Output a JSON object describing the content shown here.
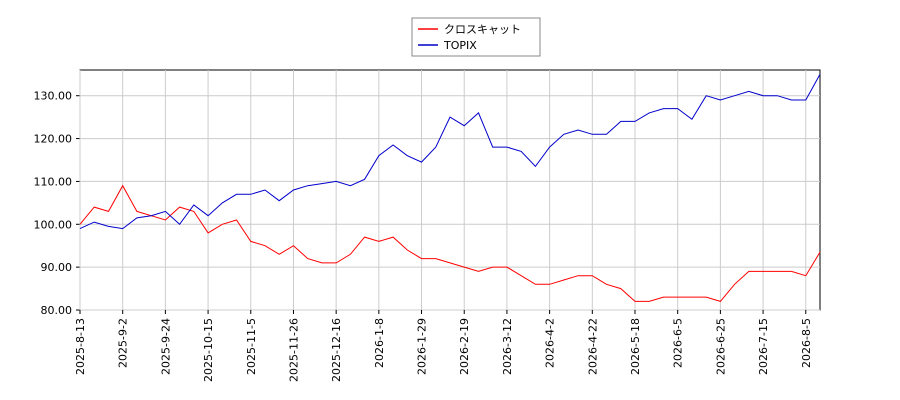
{
  "chart_data": {
    "type": "line",
    "categories": [
      "2025-8-13",
      null,
      null,
      "2025-9-2",
      null,
      null,
      "2025-9-24",
      null,
      null,
      "2025-10-15",
      null,
      null,
      "2025-11-5",
      null,
      null,
      "2025-11-26",
      null,
      null,
      "2025-12-16",
      null,
      null,
      "2026-1-8",
      null,
      null,
      "2026-1-29",
      null,
      null,
      "2026-2-19",
      null,
      null,
      "2026-3-12",
      null,
      null,
      "2026-4-2",
      null,
      null,
      "2026-4-22",
      null,
      null,
      "2026-5-18",
      null,
      null,
      "2026-6-5",
      null,
      null,
      "2026-6-25",
      null,
      null,
      "2026-7-15",
      null,
      null,
      "2026-8-5",
      null
    ],
    "series": [
      {
        "name": "クロスキャット",
        "color": "#ff0000",
        "values": [
          100,
          104,
          103,
          109,
          103,
          102,
          101,
          104,
          103,
          98,
          100,
          101,
          96,
          95,
          93,
          95,
          92,
          91,
          91,
          93,
          97,
          96,
          97,
          94,
          92,
          92,
          91,
          90,
          89,
          90,
          90,
          88,
          86,
          86,
          87,
          88,
          88,
          86,
          85,
          82,
          82,
          83,
          83,
          83,
          83,
          82,
          86,
          89,
          89,
          89,
          89,
          88,
          93.5
        ]
      },
      {
        "name": "TOPIX",
        "color": "#0000cc",
        "values": [
          99,
          100.5,
          99.5,
          99,
          101.5,
          102,
          103,
          100,
          104.5,
          102,
          105,
          107,
          107,
          108,
          105.5,
          108,
          109,
          109.5,
          110,
          109,
          110.5,
          116,
          118.5,
          116,
          114.5,
          118,
          125,
          123,
          126,
          118,
          118,
          117,
          113.5,
          118,
          121,
          122,
          121,
          121,
          124,
          124,
          126,
          127,
          127,
          124.5,
          130,
          129,
          130,
          131,
          130,
          130,
          129,
          129,
          135
        ]
      }
    ],
    "ylim": [
      80,
      136
    ],
    "yticks": [
      {
        "value": 80,
        "label": "80.00"
      },
      {
        "value": 90,
        "label": "90.00"
      },
      {
        "value": 100,
        "label": "100.00"
      },
      {
        "value": 110,
        "label": "110.00"
      },
      {
        "value": 120,
        "label": "120.00"
      },
      {
        "value": 130,
        "label": "130.00"
      }
    ],
    "grid": true
  }
}
